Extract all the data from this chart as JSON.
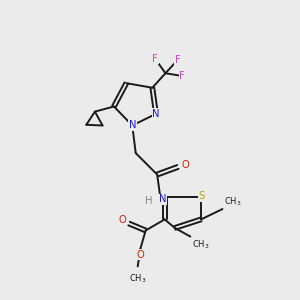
{
  "bg_color": "#ebebeb",
  "bond_color": "#1a1a1a",
  "colors": {
    "N": "#1a1acc",
    "O": "#cc2200",
    "S": "#aaaa00",
    "F": "#cc44cc",
    "C": "#1a1a1a"
  },
  "lw": 1.4,
  "fs": 7.2
}
